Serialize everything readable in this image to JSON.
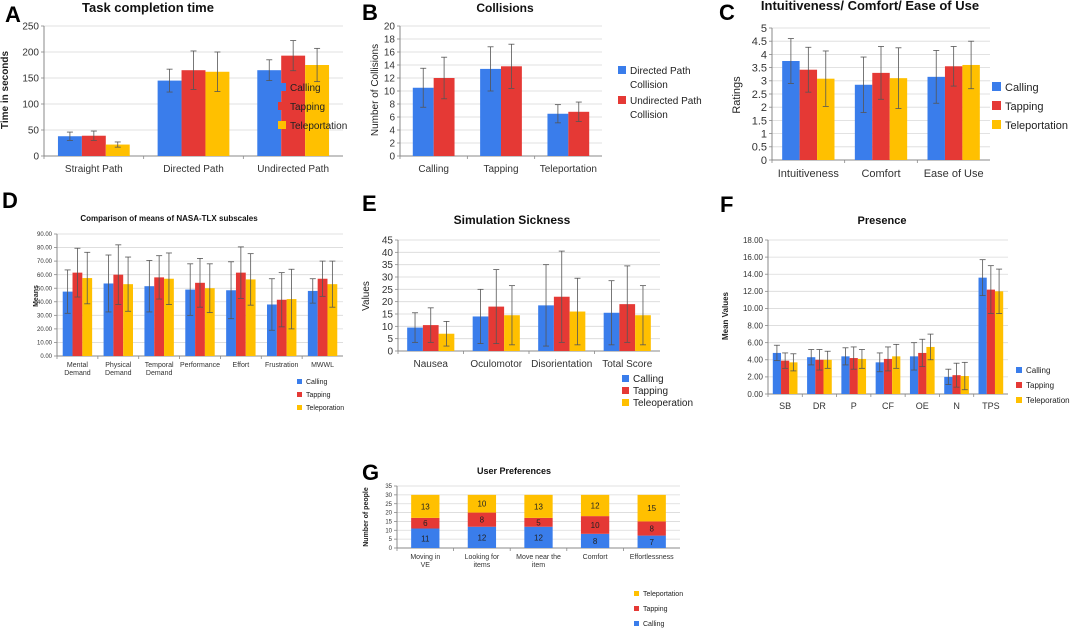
{
  "colors": {
    "calling": "#3A7DEB",
    "tapping": "#E53935",
    "teleportation": "#FFC000",
    "grid": "#d9d9d9",
    "axis": "#888888",
    "errbar": "#555555"
  },
  "chart_data": [
    {
      "id": "A",
      "letter": "A",
      "type": "bar",
      "title": "Task completion time",
      "ylabel": "Time in seconds",
      "xlabel": "",
      "ylim": [
        0,
        250
      ],
      "yticks": [
        0,
        50,
        100,
        150,
        200,
        250
      ],
      "ytick_labels": [
        "0",
        "50",
        "100",
        "150",
        "200",
        "250"
      ],
      "categories": [
        "Straight Path",
        "Directed Path",
        "Undirected Path"
      ],
      "series": [
        {
          "name": "Calling",
          "color": "calling",
          "values": [
            38,
            145,
            165
          ],
          "err": [
            8,
            22,
            20
          ]
        },
        {
          "name": "Tapping",
          "color": "tapping",
          "values": [
            39,
            165,
            193
          ],
          "err": [
            9,
            37,
            29
          ]
        },
        {
          "name": "Teleportation",
          "color": "teleportation",
          "values": [
            22,
            162,
            175
          ],
          "err": [
            5,
            38,
            32
          ]
        }
      ],
      "legend": [
        "Calling",
        "Tapping",
        "Teleportation"
      ],
      "legend_position": "right"
    },
    {
      "id": "B",
      "letter": "B",
      "type": "bar",
      "title": "Collisions",
      "ylabel": "Number of Collisions",
      "xlabel": "",
      "ylim": [
        0,
        20
      ],
      "yticks": [
        0,
        2,
        4,
        6,
        8,
        10,
        12,
        14,
        16,
        18,
        20
      ],
      "ytick_labels": [
        "0",
        "2",
        "4",
        "6",
        "8",
        "10",
        "12",
        "14",
        "16",
        "18",
        "20"
      ],
      "categories": [
        "Calling",
        "Tapping",
        "Teleportation"
      ],
      "series": [
        {
          "name": "Directed Path Collision",
          "color": "calling",
          "values": [
            10.5,
            13.4,
            6.5
          ],
          "err": [
            3.0,
            3.4,
            1.4
          ]
        },
        {
          "name": "Undirected Path Collision",
          "color": "tapping",
          "values": [
            12.0,
            13.8,
            6.8
          ],
          "err": [
            3.2,
            3.4,
            1.5
          ]
        }
      ],
      "legend": [
        "Directed Path Collision",
        "Undirected Path Collision"
      ],
      "legend_position": "right"
    },
    {
      "id": "C",
      "letter": "C",
      "type": "bar",
      "title": "Intuitiveness/ Comfort/ Ease of Use",
      "ylabel": "Ratings",
      "xlabel": "",
      "ylim": [
        0,
        5
      ],
      "yticks": [
        0,
        0.5,
        1,
        1.5,
        2,
        2.5,
        3,
        3.5,
        4,
        4.5,
        5
      ],
      "ytick_labels": [
        "0",
        "0.5",
        "1",
        "1.5",
        "2",
        "2.5",
        "3",
        "3.5",
        "4",
        "4.5",
        "5"
      ],
      "categories": [
        "Intuitiveness",
        "Comfort",
        "Ease of Use"
      ],
      "series": [
        {
          "name": "Calling",
          "color": "calling",
          "values": [
            3.75,
            2.85,
            3.15
          ],
          "err": [
            0.85,
            1.05,
            1.0
          ]
        },
        {
          "name": "Tapping",
          "color": "tapping",
          "values": [
            3.42,
            3.3,
            3.55
          ],
          "err": [
            0.85,
            1.0,
            0.75
          ]
        },
        {
          "name": "Teleportation",
          "color": "teleportation",
          "values": [
            3.08,
            3.1,
            3.6
          ],
          "err": [
            1.05,
            1.15,
            0.9
          ]
        }
      ],
      "legend": [
        "Calling",
        "Tapping",
        "Teleportation"
      ],
      "legend_position": "right"
    },
    {
      "id": "D",
      "letter": "D",
      "type": "bar",
      "title": "Comparison of means of NASA-TLX subscales",
      "ylabel": "Means",
      "xlabel": "",
      "ylim": [
        0,
        90
      ],
      "yticks": [
        0,
        10,
        20,
        30,
        40,
        50,
        60,
        70,
        80,
        90
      ],
      "ytick_labels": [
        "0.00",
        "10.00",
        "20.00",
        "30.00",
        "40.00",
        "50.00",
        "60.00",
        "70.00",
        "80.00",
        "90.00"
      ],
      "categories": [
        "Mental Demand",
        "Physical Demand",
        "Temporal Demand",
        "Performance",
        "Effort",
        "Frustration",
        "MWWL"
      ],
      "series": [
        {
          "name": "Calling",
          "color": "calling",
          "values": [
            47.5,
            53.5,
            51.5,
            49,
            48.5,
            38,
            48
          ],
          "err": [
            16,
            21,
            19,
            19,
            21,
            19,
            9
          ]
        },
        {
          "name": "Tapping",
          "color": "tapping",
          "values": [
            61.5,
            60,
            58,
            54,
            61.5,
            41.5,
            57
          ],
          "err": [
            18,
            22,
            16,
            18,
            19,
            20,
            13
          ]
        },
        {
          "name": "Teleportation",
          "color": "teleportation",
          "values": [
            57.5,
            53,
            57,
            50,
            56.5,
            42,
            53
          ],
          "err": [
            19,
            20,
            19,
            18,
            19,
            22,
            17
          ]
        }
      ],
      "legend": [
        "Calling",
        "Tapping",
        "Teleporation"
      ],
      "legend_position": "bottom-right"
    },
    {
      "id": "E",
      "letter": "E",
      "type": "bar",
      "title": "Simulation Sickness",
      "ylabel": "Values",
      "xlabel": "",
      "ylim": [
        0,
        45
      ],
      "yticks": [
        0,
        5,
        10,
        15,
        20,
        25,
        30,
        35,
        40,
        45
      ],
      "ytick_labels": [
        "0",
        "5",
        "10",
        "15",
        "20",
        "25",
        "30",
        "35",
        "40",
        "45"
      ],
      "categories": [
        "Nausea",
        "Oculomotor",
        "Disorientation",
        "Total Score"
      ],
      "series": [
        {
          "name": "Calling",
          "color": "calling",
          "values": [
            9.5,
            14,
            18.5,
            15.5
          ],
          "err": [
            6,
            11,
            16.5,
            13
          ]
        },
        {
          "name": "Tapping",
          "color": "tapping",
          "values": [
            10.5,
            18,
            22,
            19
          ],
          "err": [
            7,
            15,
            18.5,
            15.5
          ]
        },
        {
          "name": "Teleportation",
          "color": "teleportation",
          "values": [
            7,
            14.5,
            16,
            14.5
          ],
          "err": [
            5,
            12,
            13.5,
            12
          ]
        }
      ],
      "legend": [
        "Calling",
        "Tapping",
        "Teleoperation"
      ],
      "legend_position": "bottom-right"
    },
    {
      "id": "F",
      "letter": "F",
      "type": "bar",
      "title": "Presence",
      "ylabel": "Mean Values",
      "xlabel": "",
      "ylim": [
        0,
        18
      ],
      "yticks": [
        0,
        2,
        4,
        6,
        8,
        10,
        12,
        14,
        16,
        18
      ],
      "ytick_labels": [
        "0.00",
        "2.00",
        "4.00",
        "6.00",
        "8.00",
        "10.00",
        "12.00",
        "14.00",
        "16.00",
        "18.00"
      ],
      "categories": [
        "SB",
        "DR",
        "P",
        "CF",
        "OE",
        "N",
        "TPS"
      ],
      "series": [
        {
          "name": "Calling",
          "color": "calling",
          "values": [
            4.8,
            4.3,
            4.4,
            3.7,
            4.4,
            2.0,
            13.6
          ],
          "err": [
            0.9,
            0.9,
            1.0,
            1.1,
            1.6,
            0.9,
            2.1
          ]
        },
        {
          "name": "Tapping",
          "color": "tapping",
          "values": [
            3.9,
            4.0,
            4.2,
            4.1,
            4.8,
            2.2,
            12.2
          ],
          "err": [
            0.9,
            1.2,
            1.3,
            1.4,
            1.6,
            1.4,
            2.8
          ]
        },
        {
          "name": "Teleportation",
          "color": "teleportation",
          "values": [
            3.7,
            4.0,
            4.1,
            4.4,
            5.5,
            2.1,
            12.0
          ],
          "err": [
            1.0,
            1.0,
            1.1,
            1.4,
            1.5,
            1.6,
            2.6
          ]
        }
      ],
      "legend": [
        "Calling",
        "Tapping",
        "Teleporation"
      ],
      "legend_position": "bottom-right"
    },
    {
      "id": "G",
      "letter": "G",
      "type": "stacked-bar",
      "title": "User Preferences",
      "ylabel": "Number of people",
      "xlabel": "",
      "ylim": [
        0,
        35
      ],
      "yticks": [
        0,
        5,
        10,
        15,
        20,
        25,
        30,
        35
      ],
      "ytick_labels": [
        "0",
        "5",
        "10",
        "15",
        "20",
        "25",
        "30",
        "35"
      ],
      "categories": [
        "Moving in VE",
        "Looking for items",
        "Move near the item",
        "Comfort",
        "Effortlessness"
      ],
      "series": [
        {
          "name": "Calling",
          "color": "calling",
          "values": [
            11,
            12,
            12,
            8,
            7
          ],
          "labels": [
            "11",
            "12",
            "12",
            "8",
            "7"
          ]
        },
        {
          "name": "Tapping",
          "color": "tapping",
          "values": [
            6,
            8,
            5,
            10,
            8
          ],
          "labels": [
            "6",
            "8",
            "5",
            "10",
            "8"
          ]
        },
        {
          "name": "Teleportation",
          "color": "teleportation",
          "values": [
            13,
            10,
            13,
            12,
            15
          ],
          "labels": [
            "13",
            "10",
            "13",
            "12",
            "15"
          ]
        }
      ],
      "legend": [
        "Teleportation",
        "Tapping",
        "Calling"
      ],
      "legend_position": "bottom"
    }
  ]
}
